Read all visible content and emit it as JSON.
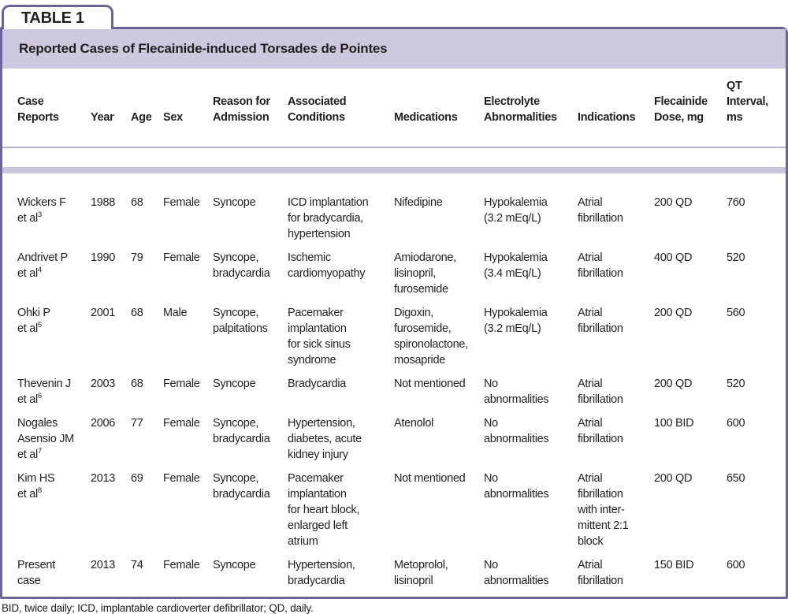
{
  "tab_label": "TABLE 1",
  "title": "Reported Cases of Flecainide-induced Torsades de Pointes",
  "footnote": "BID, twice daily; ICD, implantable cardioverter defibrillator; QD, daily.",
  "colors": {
    "border_purple": "#6c6396",
    "title_band": "#cdc9de",
    "separator_band": "#c9c4da",
    "text": "#231f20"
  },
  "table": {
    "columns": [
      "Case\nReports",
      "Year",
      "Age",
      "Sex",
      "Reason for\nAdmission",
      "Associated\nConditions",
      "Medications",
      "Electrolyte\nAbnormalities",
      "Indications",
      "Flecainide\nDose, mg",
      "QT\nInterval,\nms"
    ],
    "rows": [
      {
        "case": {
          "name": "Wickers F",
          "etal": "et al",
          "ref": "3"
        },
        "year": "1988",
        "age": "68",
        "sex": "Female",
        "reason": "Syncope",
        "conditions": "ICD implantation\nfor bradycardia,\nhypertension",
        "medications": "Nifedipine",
        "electrolyte": "Hypokalemia\n(3.2 mEq/L)",
        "indications": "Atrial\nfibrillation",
        "dose": "200 QD",
        "qt": "760"
      },
      {
        "case": {
          "name": "Andrivet P",
          "etal": "et al",
          "ref": "4"
        },
        "year": "1990",
        "age": "79",
        "sex": "Female",
        "reason": "Syncope,\nbradycardia",
        "conditions": "Ischemic\ncardiomyopathy",
        "medications": "Amiodarone,\nlisinopril,\nfurosemide",
        "electrolyte": "Hypokalemia\n(3.4 mEq/L)",
        "indications": "Atrial\nfibrillation",
        "dose": "400 QD",
        "qt": "520"
      },
      {
        "case": {
          "name": "Ohki P",
          "etal": "et al",
          "ref": "5"
        },
        "year": "2001",
        "age": "68",
        "sex": "Male",
        "reason": "Syncope,\npalpitations",
        "conditions": "Pacemaker\nimplantation\nfor sick sinus\nsyndrome",
        "medications": "Digoxin,\nfurosemide,\nspironolactone,\nmosapride",
        "electrolyte": "Hypokalemia\n(3.2 mEq/L)",
        "indications": "Atrial\nfibrillation",
        "dose": "200 QD",
        "qt": "560"
      },
      {
        "case": {
          "name": "Thevenin J",
          "etal": "et al",
          "ref": "6"
        },
        "year": "2003",
        "age": "68",
        "sex": "Female",
        "reason": "Syncope",
        "conditions": "Bradycardia",
        "medications": "Not mentioned",
        "electrolyte": "No\nabnormalities",
        "indications": "Atrial\nfibrillation",
        "dose": "200 QD",
        "qt": "520"
      },
      {
        "case": {
          "name": "Nogales\nAsensio JM",
          "etal": "et al",
          "ref": "7"
        },
        "year": "2006",
        "age": "77",
        "sex": "Female",
        "reason": "Syncope,\nbradycardia",
        "conditions": "Hypertension,\ndiabetes, acute\nkidney injury",
        "medications": "Atenolol",
        "electrolyte": "No\nabnormalities",
        "indications": "Atrial\nfibrillation",
        "dose": "100 BID",
        "qt": "600"
      },
      {
        "case": {
          "name": "Kim HS",
          "etal": "et al",
          "ref": "8"
        },
        "year": "2013",
        "age": "69",
        "sex": "Female",
        "reason": "Syncope,\nbradycardia",
        "conditions": "Pacemaker\nimplantation\nfor heart block,\nenlarged left\natrium",
        "medications": "Not mentioned",
        "electrolyte": "No\nabnormalities",
        "indications": "Atrial\nfibrillation\nwith inter-\nmittent 2:1\nblock",
        "dose": "200 QD",
        "qt": "650"
      },
      {
        "case": {
          "name": "Present\ncase",
          "etal": "",
          "ref": ""
        },
        "year": "2013",
        "age": "74",
        "sex": "Female",
        "reason": "Syncope",
        "conditions": "Hypertension,\nbradycardia",
        "medications": "Metoprolol,\nlisinopril",
        "electrolyte": "No\nabnormalities",
        "indications": "Atrial\nfibrillation",
        "dose": "150 BID",
        "qt": "600"
      }
    ]
  }
}
